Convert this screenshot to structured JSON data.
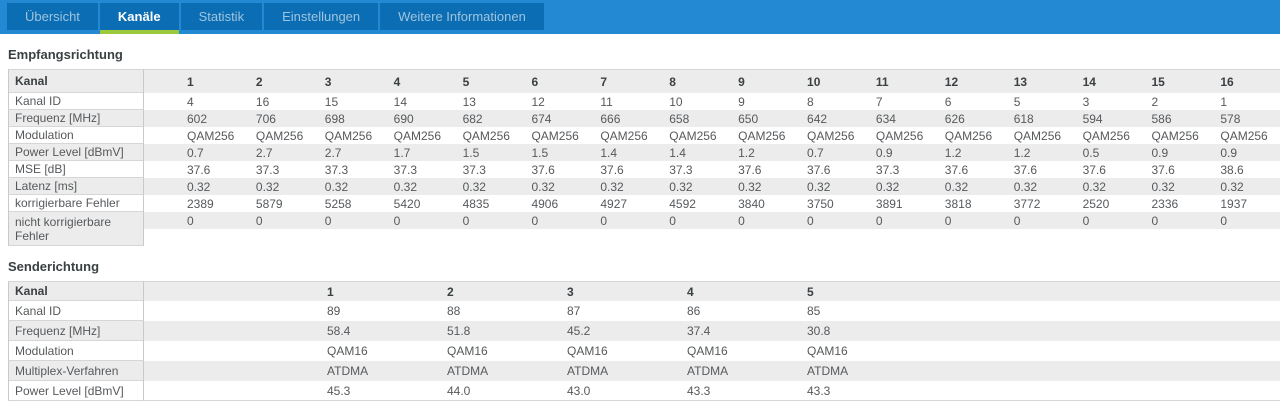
{
  "tab_bar": {
    "tabs": [
      {
        "label": "Übersicht",
        "active": false
      },
      {
        "label": "Kanäle",
        "active": true
      },
      {
        "label": "Statistik",
        "active": false
      },
      {
        "label": "Einstellungen",
        "active": false
      },
      {
        "label": "Weitere Informationen",
        "active": false
      }
    ],
    "colors": {
      "bar_background": "#2289d2",
      "tab_background": "#0b6db3",
      "active_tab_text": "#ffffff",
      "inactive_tab_text": "#9fc4dd",
      "active_underline": "#9cc83c"
    }
  },
  "sections": [
    {
      "title": "Empfangsrichtung",
      "table": {
        "header_label": "Kanal",
        "columns": [
          "1",
          "2",
          "3",
          "4",
          "5",
          "6",
          "7",
          "8",
          "9",
          "10",
          "11",
          "12",
          "13",
          "14",
          "15",
          "16"
        ],
        "rows": [
          {
            "label": "Kanal ID",
            "values": [
              "4",
              "16",
              "15",
              "14",
              "13",
              "12",
              "11",
              "10",
              "9",
              "8",
              "7",
              "6",
              "5",
              "3",
              "2",
              "1"
            ]
          },
          {
            "label": "Frequenz [MHz]",
            "values": [
              "602",
              "706",
              "698",
              "690",
              "682",
              "674",
              "666",
              "658",
              "650",
              "642",
              "634",
              "626",
              "618",
              "594",
              "586",
              "578"
            ]
          },
          {
            "label": "Modulation",
            "values": [
              "QAM256",
              "QAM256",
              "QAM256",
              "QAM256",
              "QAM256",
              "QAM256",
              "QAM256",
              "QAM256",
              "QAM256",
              "QAM256",
              "QAM256",
              "QAM256",
              "QAM256",
              "QAM256",
              "QAM256",
              "QAM256"
            ]
          },
          {
            "label": "Power Level [dBmV]",
            "values": [
              "0.7",
              "2.7",
              "2.7",
              "1.7",
              "1.5",
              "1.5",
              "1.4",
              "1.4",
              "1.2",
              "0.7",
              "0.9",
              "1.2",
              "1.2",
              "0.5",
              "0.9",
              "0.9"
            ]
          },
          {
            "label": "MSE [dB]",
            "values": [
              "37.6",
              "37.3",
              "37.3",
              "37.3",
              "37.3",
              "37.6",
              "37.6",
              "37.3",
              "37.6",
              "37.6",
              "37.3",
              "37.6",
              "37.6",
              "37.6",
              "37.6",
              "38.6"
            ]
          },
          {
            "label": "Latenz [ms]",
            "values": [
              "0.32",
              "0.32",
              "0.32",
              "0.32",
              "0.32",
              "0.32",
              "0.32",
              "0.32",
              "0.32",
              "0.32",
              "0.32",
              "0.32",
              "0.32",
              "0.32",
              "0.32",
              "0.32"
            ]
          },
          {
            "label": "korrigierbare Fehler",
            "values": [
              "2389",
              "5879",
              "5258",
              "5420",
              "4835",
              "4906",
              "4927",
              "4592",
              "3840",
              "3750",
              "3891",
              "3818",
              "3772",
              "2520",
              "2336",
              "1937"
            ]
          },
          {
            "label": "nicht korrigierbare Fehler",
            "wrap": true,
            "values": [
              "0",
              "0",
              "0",
              "0",
              "0",
              "0",
              "0",
              "0",
              "0",
              "0",
              "0",
              "0",
              "0",
              "0",
              "0",
              "0"
            ]
          }
        ]
      }
    },
    {
      "title": "Senderichtung",
      "table": {
        "header_label": "Kanal",
        "columns": [
          "1",
          "2",
          "3",
          "4",
          "5"
        ],
        "rows": [
          {
            "label": "Kanal ID",
            "values": [
              "89",
              "88",
              "87",
              "86",
              "85"
            ]
          },
          {
            "label": "Frequenz [MHz]",
            "values": [
              "58.4",
              "51.8",
              "45.2",
              "37.4",
              "30.8"
            ]
          },
          {
            "label": "Modulation",
            "values": [
              "QAM16",
              "QAM16",
              "QAM16",
              "QAM16",
              "QAM16"
            ]
          },
          {
            "label": "Multiplex-Verfahren",
            "values": [
              "ATDMA",
              "ATDMA",
              "ATDMA",
              "ATDMA",
              "ATDMA"
            ]
          },
          {
            "label": "Power Level [dBmV]",
            "values": [
              "45.3",
              "44.0",
              "43.0",
              "43.3",
              "43.3"
            ]
          }
        ]
      }
    }
  ]
}
